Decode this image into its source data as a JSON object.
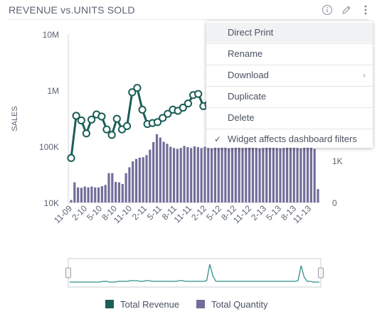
{
  "widget": {
    "title": "REVENUE vs.UNITS SOLD",
    "icons": [
      "info-icon",
      "pencil-icon",
      "more-options-icon"
    ]
  },
  "menu": {
    "items": [
      {
        "label": "Direct Print"
      },
      {
        "label": "Rename"
      },
      {
        "label": "Download",
        "submenu": true
      },
      {
        "label": "Duplicate"
      },
      {
        "label": "Delete"
      },
      {
        "label": "Widget affects dashboard filters",
        "checked": true
      }
    ]
  },
  "legend": {
    "revenue": "Total Revenue",
    "quantity": "Total Quantity"
  },
  "colors": {
    "revenue": "#1b5e57",
    "quantity": "#716e9a",
    "navigator": "#2f8f86"
  },
  "chart_data": {
    "type": "bar+line",
    "ylabel": "SALES",
    "left_axis": {
      "scale": "log",
      "ticks": [
        "10K",
        "100K",
        "1M",
        "10M"
      ],
      "range": [
        10000,
        10000000
      ]
    },
    "right_axis": {
      "ticks": [
        "0",
        "1K"
      ]
    },
    "x_tick_labels": [
      "11-09",
      "2-10",
      "5-10",
      "8-10",
      "11-10",
      "2-11",
      "5-11",
      "8-11",
      "11-11",
      "2-12",
      "5-12",
      "8-12",
      "11-12",
      "2-13",
      "5-13",
      "8-13",
      "11-13"
    ],
    "series": [
      {
        "name": "Total Revenue",
        "kind": "line",
        "axis": "left",
        "values": [
          62000,
          350000,
          290000,
          170000,
          300000,
          370000,
          340000,
          200000,
          160000,
          310000,
          200000,
          230000,
          920000,
          1100000,
          450000,
          250000,
          260000,
          270000,
          320000,
          380000,
          450000,
          430000,
          490000,
          580000,
          820000,
          860000,
          520000,
          560000
        ]
      },
      {
        "name": "Total Quantity",
        "kind": "bar",
        "axis": "right",
        "values": [
          60,
          480,
          360,
          350,
          380,
          360,
          380,
          360,
          360,
          390,
          420,
          700,
          700,
          490,
          480,
          440,
          700,
          840,
          980,
          1040,
          1070,
          1080,
          1130,
          1260,
          1440,
          1630,
          1550,
          1450,
          1400,
          1330,
          1300,
          1280,
          1300,
          1350,
          1320,
          1300,
          1340,
          1320,
          1300,
          1330,
          1300,
          1290,
          1310,
          1300,
          1320,
          1330,
          1290,
          1300,
          1330,
          1310,
          1300,
          1350,
          1360,
          1380,
          1300,
          1290,
          1300,
          1310,
          1320,
          1330,
          1300,
          1290,
          1300,
          1310,
          1320,
          1330,
          1300,
          1290,
          1310,
          1320,
          1330,
          1280,
          320
        ]
      }
    ],
    "navigator_series": [
      3,
      3,
      3,
      3,
      3,
      3,
      3,
      3,
      3,
      3,
      3,
      4,
      4,
      3,
      3,
      3,
      4,
      4,
      4,
      4,
      5,
      5,
      5,
      4,
      4,
      5,
      5,
      4,
      4,
      4,
      4,
      4,
      4,
      4,
      4,
      4,
      5,
      5,
      4,
      4,
      4,
      4,
      4,
      4,
      4,
      5,
      28,
      12,
      4,
      4,
      4,
      4,
      4,
      4,
      4,
      4,
      4,
      4,
      4,
      4,
      4,
      4,
      4,
      4,
      4,
      4,
      4,
      4,
      4,
      4,
      4,
      4,
      4,
      4,
      4,
      5,
      26,
      10,
      4,
      4,
      3,
      3,
      3
    ],
    "legend_position": "bottom",
    "grid": false
  }
}
